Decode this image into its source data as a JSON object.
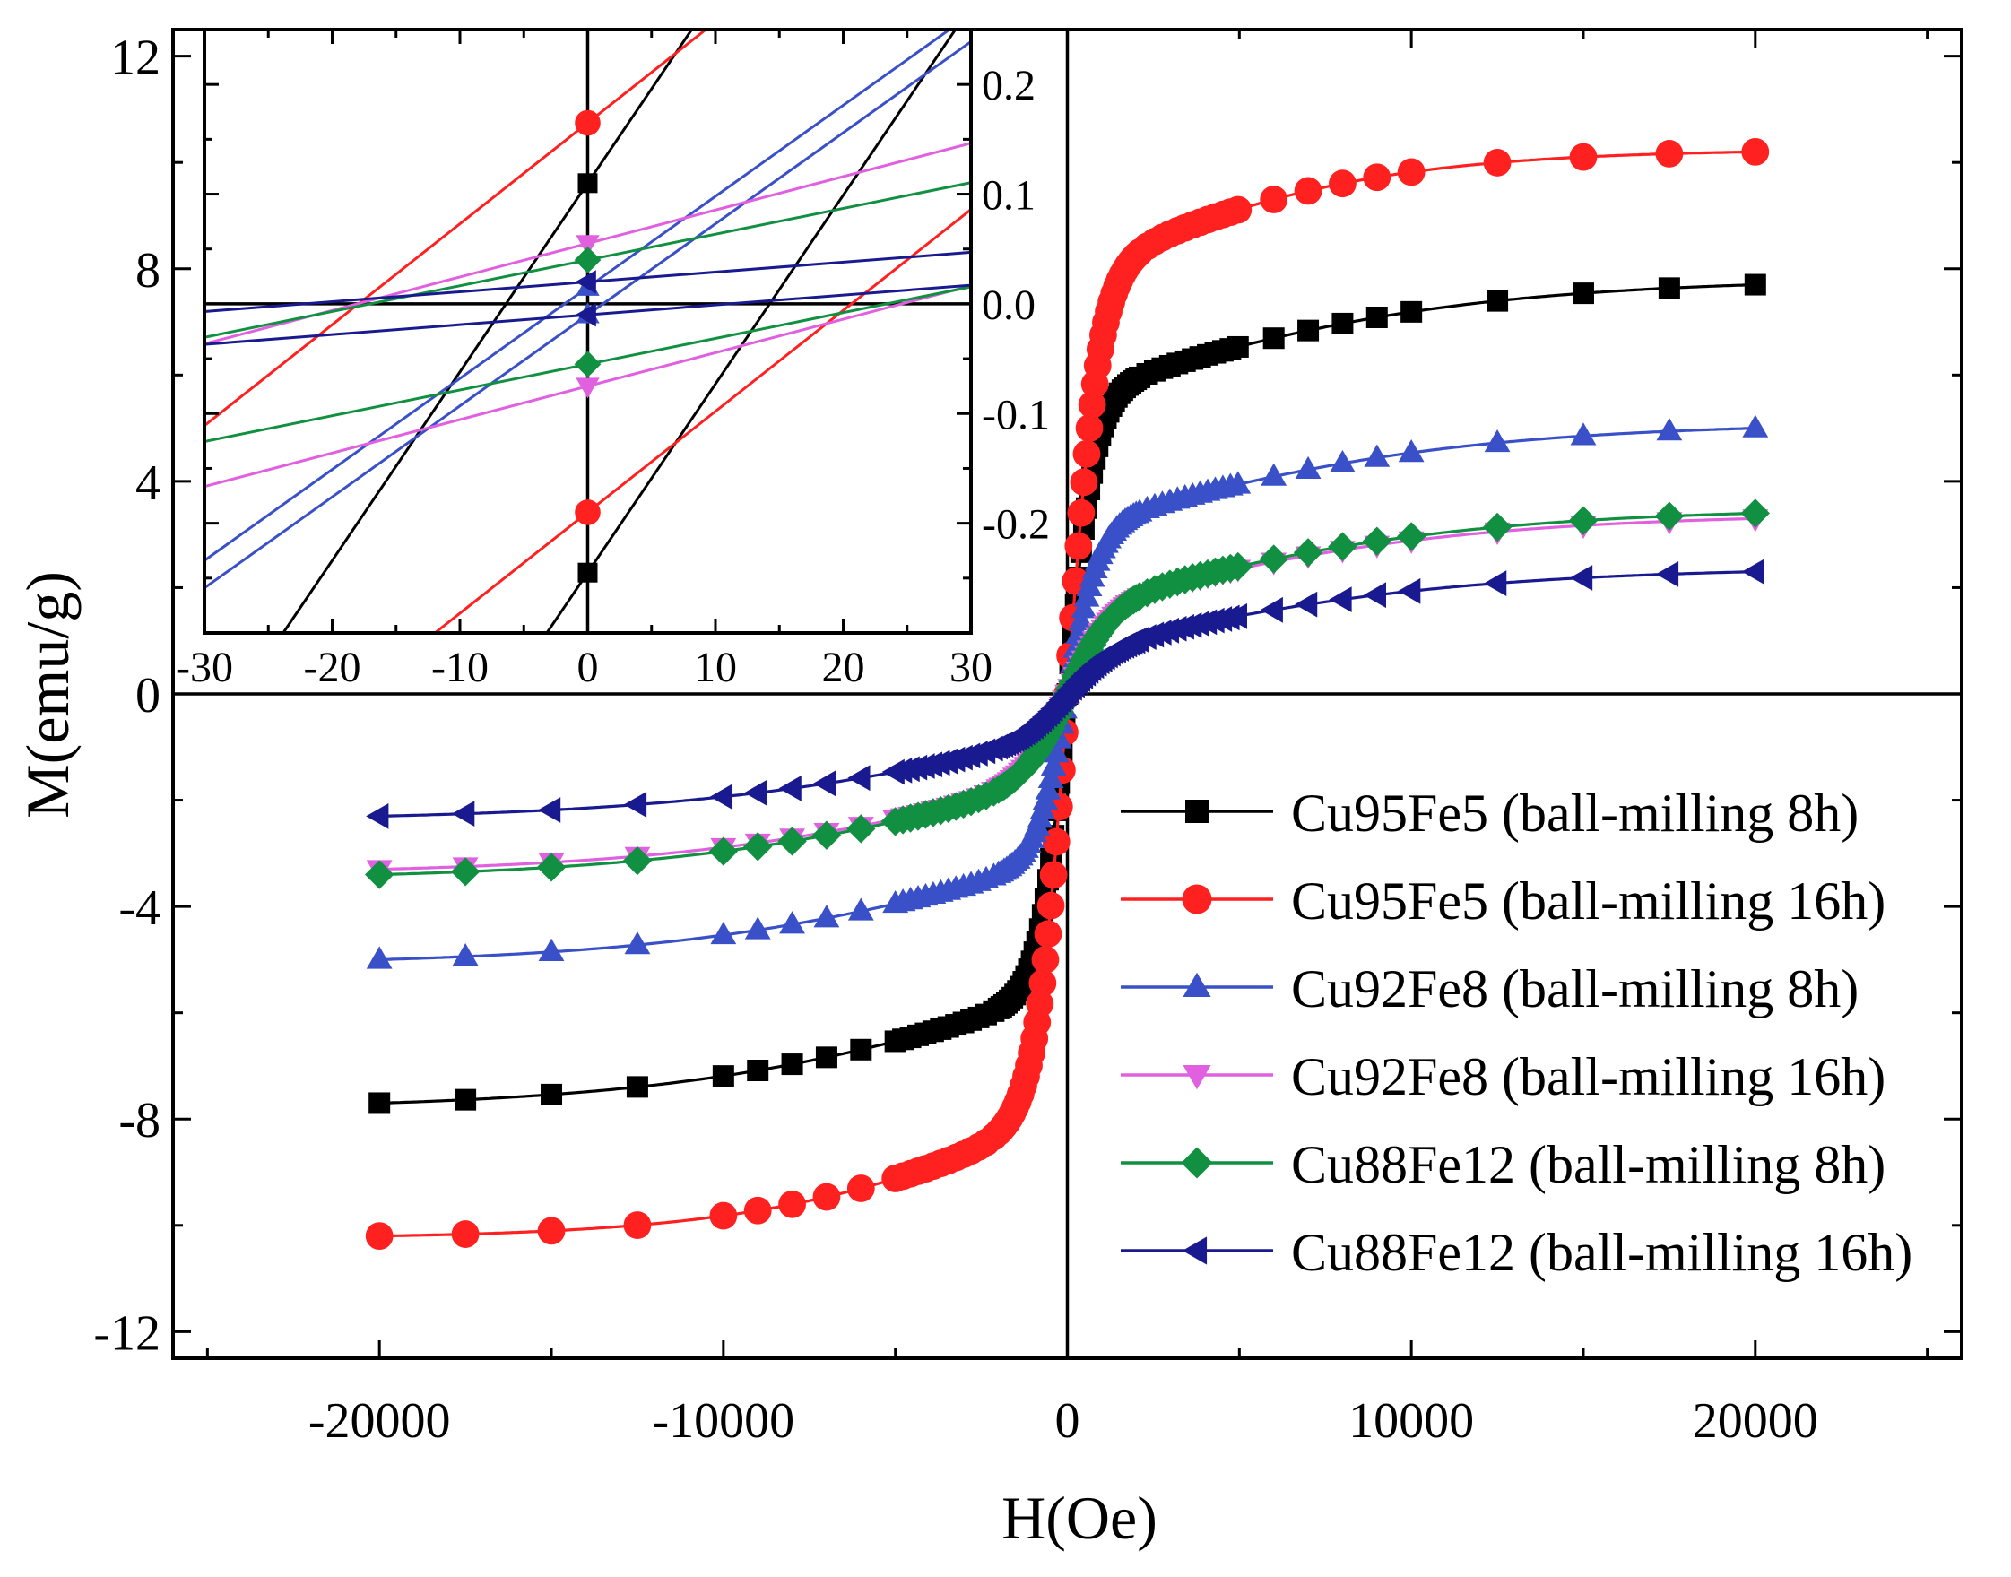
{
  "chart_data": {
    "type": "line",
    "main": {
      "xlabel": "H(Oe)",
      "ylabel": "M(emu/g)",
      "xlim": [
        -26000,
        26000
      ],
      "ylim": [
        -12.5,
        12.5
      ],
      "x_ticks": [
        -20000,
        -10000,
        0,
        10000,
        20000
      ],
      "x_tick_labels": [
        "-20000",
        "-10000",
        "0",
        "10000",
        "20000"
      ],
      "y_ticks": [
        -12,
        -8,
        -4,
        0,
        4,
        8,
        12
      ],
      "y_tick_labels": [
        "-12",
        "-8",
        "-4",
        "0",
        "4",
        "8",
        "12"
      ],
      "legend_position": "bottom-right",
      "series": [
        {
          "name": "Cu95Fe5 (ball-milling 8h)",
          "color": "#000000",
          "marker": "square",
          "ms": 7.7,
          "a": 5.6,
          "h0": 800,
          "k": 9e-05
        },
        {
          "name": "Cu95Fe5 (ball-milling 16h)",
          "color": "#ff2020",
          "marker": "circle",
          "ms": 10.2,
          "a": 7.9,
          "h0": 900,
          "k": 0.000115
        },
        {
          "name": "Cu92Fe8 (ball-milling 8h)",
          "color": "#3a50c8",
          "marker": "triangle-up",
          "ms": 5.0,
          "a": 3.1,
          "h0": 900,
          "k": 9e-05
        },
        {
          "name": "Cu92Fe8 (ball-milling 16h)",
          "color": "#e060e0",
          "marker": "triangle-down",
          "ms": 3.3,
          "a": 1.6,
          "h0": 1300,
          "k": 9e-05
        },
        {
          "name": "Cu88Fe12 (ball-milling 8h)",
          "color": "#109040",
          "marker": "diamond",
          "ms": 3.4,
          "a": 1.6,
          "h0": 1300,
          "k": 9e-05
        },
        {
          "name": "Cu88Fe12 (ball-milling 16h)",
          "color": "#1a1a90",
          "marker": "triangle-left",
          "ms": 2.3,
          "a": 0.8,
          "h0": 1400,
          "k": 9e-05
        }
      ],
      "marker_fields": [
        -20000,
        -17500,
        -15000,
        -12500,
        -10000,
        -9000,
        -8000,
        -7000,
        -6000
      ]
    },
    "inset": {
      "xlim": [
        -30,
        30
      ],
      "ylim": [
        -0.3,
        0.25
      ],
      "x_ticks": [
        -30,
        -20,
        -10,
        0,
        10,
        20,
        30
      ],
      "x_tick_labels": [
        "-30",
        "-20",
        "-10",
        "0",
        "10",
        "20",
        "30"
      ],
      "y_ticks": [
        -0.2,
        -0.1,
        0.0,
        0.1,
        0.2
      ],
      "y_tick_labels": [
        "-0.2",
        "-0.1",
        "0.0",
        "0.1",
        "0.2"
      ],
      "loops": [
        {
          "name": "Cu95Fe5 (ball-milling 8h)",
          "color": "#000000",
          "marker": "square",
          "slope": 0.0172,
          "upper_at_0": 0.11,
          "lower_at_0": -0.245
        },
        {
          "name": "Cu95Fe5 (ball-milling 16h)",
          "color": "#ff2020",
          "marker": "circle",
          "slope": 0.0092,
          "upper_at_0": 0.165,
          "lower_at_0": -0.19
        },
        {
          "name": "Cu92Fe8 (ball-milling 8h)",
          "color": "#3a50c8",
          "marker": "triangle-up",
          "slope": 0.0083,
          "upper_at_0": 0.015,
          "lower_at_0": -0.01
        },
        {
          "name": "Cu92Fe8 (ball-milling 16h)",
          "color": "#e060e0",
          "marker": "triangle-down",
          "slope": 0.00305,
          "upper_at_0": 0.055,
          "lower_at_0": -0.075
        },
        {
          "name": "Cu88Fe12 (ball-milling 8h)",
          "color": "#109040",
          "marker": "diamond",
          "slope": 0.00235,
          "upper_at_0": 0.04,
          "lower_at_0": -0.055
        },
        {
          "name": "Cu88Fe12 (ball-milling 16h)",
          "color": "#1a1a90",
          "marker": "triangle-left",
          "slope": 0.0009,
          "upper_at_0": 0.02,
          "lower_at_0": -0.01
        }
      ]
    }
  }
}
